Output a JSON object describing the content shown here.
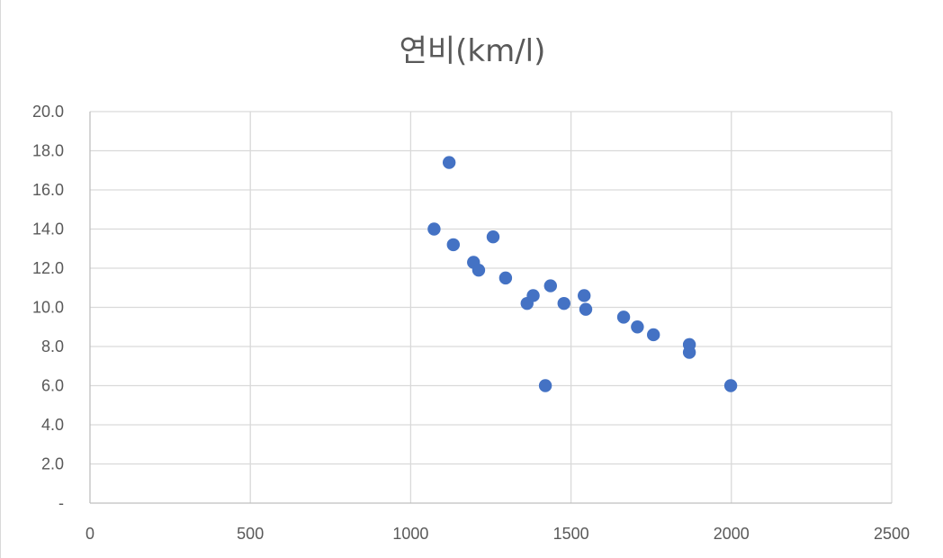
{
  "chart_data": {
    "type": "scatter",
    "title": "연비(km/l)",
    "xlabel": "",
    "ylabel": "",
    "xlim": [
      0,
      2500
    ],
    "ylim": [
      0,
      20
    ],
    "x_ticks": [
      "0",
      "500",
      "1000",
      "1500",
      "2000",
      "2500"
    ],
    "y_ticks": [
      "-",
      "2.0",
      "4.0",
      "6.0",
      "8.0",
      "10.0",
      "12.0",
      "14.0",
      "16.0",
      "18.0",
      "20.0"
    ],
    "grid": true,
    "legend": "none",
    "series": [
      {
        "color": "#4472c4",
        "points": [
          {
            "x": 1120,
            "y": 17.4
          },
          {
            "x": 1073,
            "y": 14.0
          },
          {
            "x": 1133,
            "y": 13.2
          },
          {
            "x": 1257,
            "y": 13.6
          },
          {
            "x": 1196,
            "y": 12.3
          },
          {
            "x": 1212,
            "y": 11.9
          },
          {
            "x": 1296,
            "y": 11.5
          },
          {
            "x": 1436,
            "y": 11.1
          },
          {
            "x": 1382,
            "y": 10.6
          },
          {
            "x": 1541,
            "y": 10.6
          },
          {
            "x": 1363,
            "y": 10.2
          },
          {
            "x": 1478,
            "y": 10.2
          },
          {
            "x": 1546,
            "y": 9.9
          },
          {
            "x": 1664,
            "y": 9.5
          },
          {
            "x": 1707,
            "y": 9.0
          },
          {
            "x": 1757,
            "y": 8.6
          },
          {
            "x": 1869,
            "y": 8.1
          },
          {
            "x": 1869,
            "y": 7.7
          },
          {
            "x": 1420,
            "y": 6.0
          },
          {
            "x": 1998,
            "y": 6.0
          }
        ]
      }
    ]
  }
}
